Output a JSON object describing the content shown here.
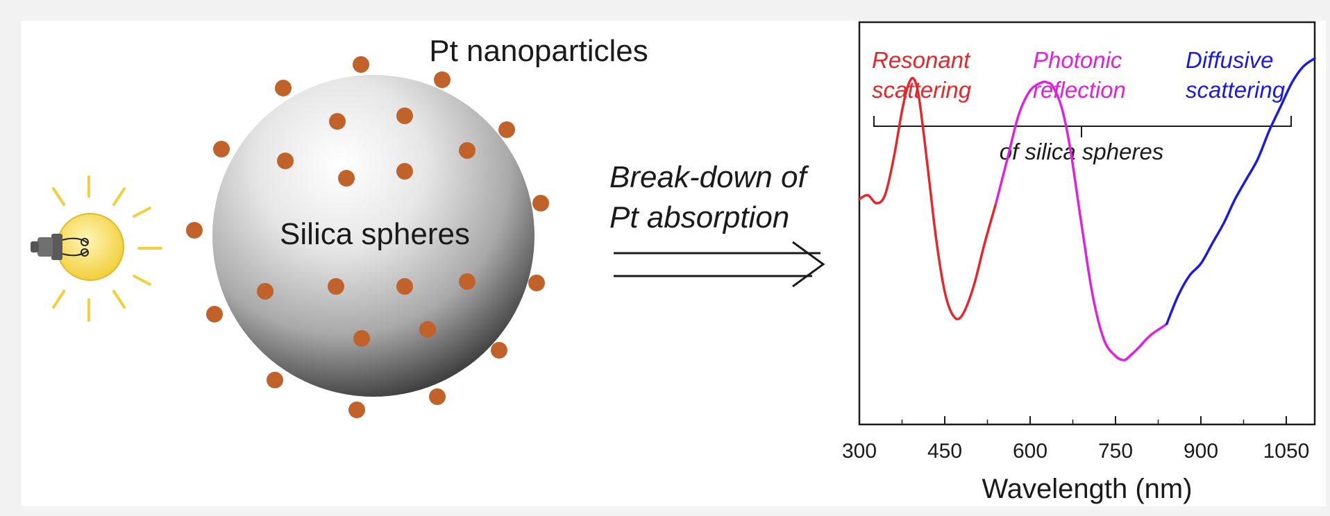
{
  "diagram": {
    "nanoparticle_label": "Pt nanoparticles",
    "sphere_label": "Silica spheres",
    "arrow_label_line1": "Break-down of",
    "arrow_label_line2": "Pt absorption",
    "light_source_icon": "light-bulb-icon",
    "particle_color": "#c0622a"
  },
  "chart_data": {
    "type": "line",
    "title": "",
    "xlabel": "Wavelength (nm)",
    "ylabel": "",
    "xlim": [
      300,
      1100
    ],
    "xticks": [
      300,
      450,
      600,
      750,
      900,
      1050
    ],
    "ylim": [
      0,
      1
    ],
    "yticks": [],
    "grid": false,
    "regions": [
      {
        "label_line1": "Resonant",
        "label_line2": "scattering",
        "color": "#e8262a",
        "x_range": [
          300,
          540
        ]
      },
      {
        "label_line1": "Photonic",
        "label_line2": "reflection",
        "color": "#e020e0",
        "x_range": [
          540,
          840
        ]
      },
      {
        "label_line1": "Diffusive",
        "label_line2": "scattering",
        "color": "#1a1ae6",
        "x_range": [
          840,
          1100
        ]
      }
    ],
    "bracket_label": "of silica spheres",
    "series": [
      {
        "segments": [
          {
            "color": "#e8262a",
            "x": [
              300,
              315,
              330,
              345,
              360,
              375,
              385,
              395,
              405,
              420,
              435,
              450,
              465,
              480,
              500,
              520,
              540
            ],
            "y": [
              0.56,
              0.57,
              0.55,
              0.57,
              0.66,
              0.78,
              0.84,
              0.86,
              0.81,
              0.64,
              0.46,
              0.33,
              0.27,
              0.27,
              0.34,
              0.45,
              0.55
            ]
          },
          {
            "color": "#e020e0",
            "x": [
              540,
              560,
              580,
              600,
              620,
              630,
              640,
              655,
              670,
              690,
              710,
              730,
              750,
              765,
              775,
              790,
              810,
              830,
              840
            ],
            "y": [
              0.55,
              0.66,
              0.77,
              0.83,
              0.85,
              0.85,
              0.84,
              0.79,
              0.69,
              0.5,
              0.32,
              0.21,
              0.17,
              0.16,
              0.17,
              0.19,
              0.22,
              0.24,
              0.25
            ]
          },
          {
            "color": "#1a1ae6",
            "x": [
              840,
              860,
              880,
              900,
              920,
              940,
              960,
              980,
              1000,
              1020,
              1040,
              1060,
              1080,
              1100
            ],
            "y": [
              0.25,
              0.32,
              0.37,
              0.4,
              0.45,
              0.5,
              0.56,
              0.61,
              0.66,
              0.73,
              0.79,
              0.85,
              0.89,
              0.91
            ]
          }
        ]
      }
    ]
  }
}
